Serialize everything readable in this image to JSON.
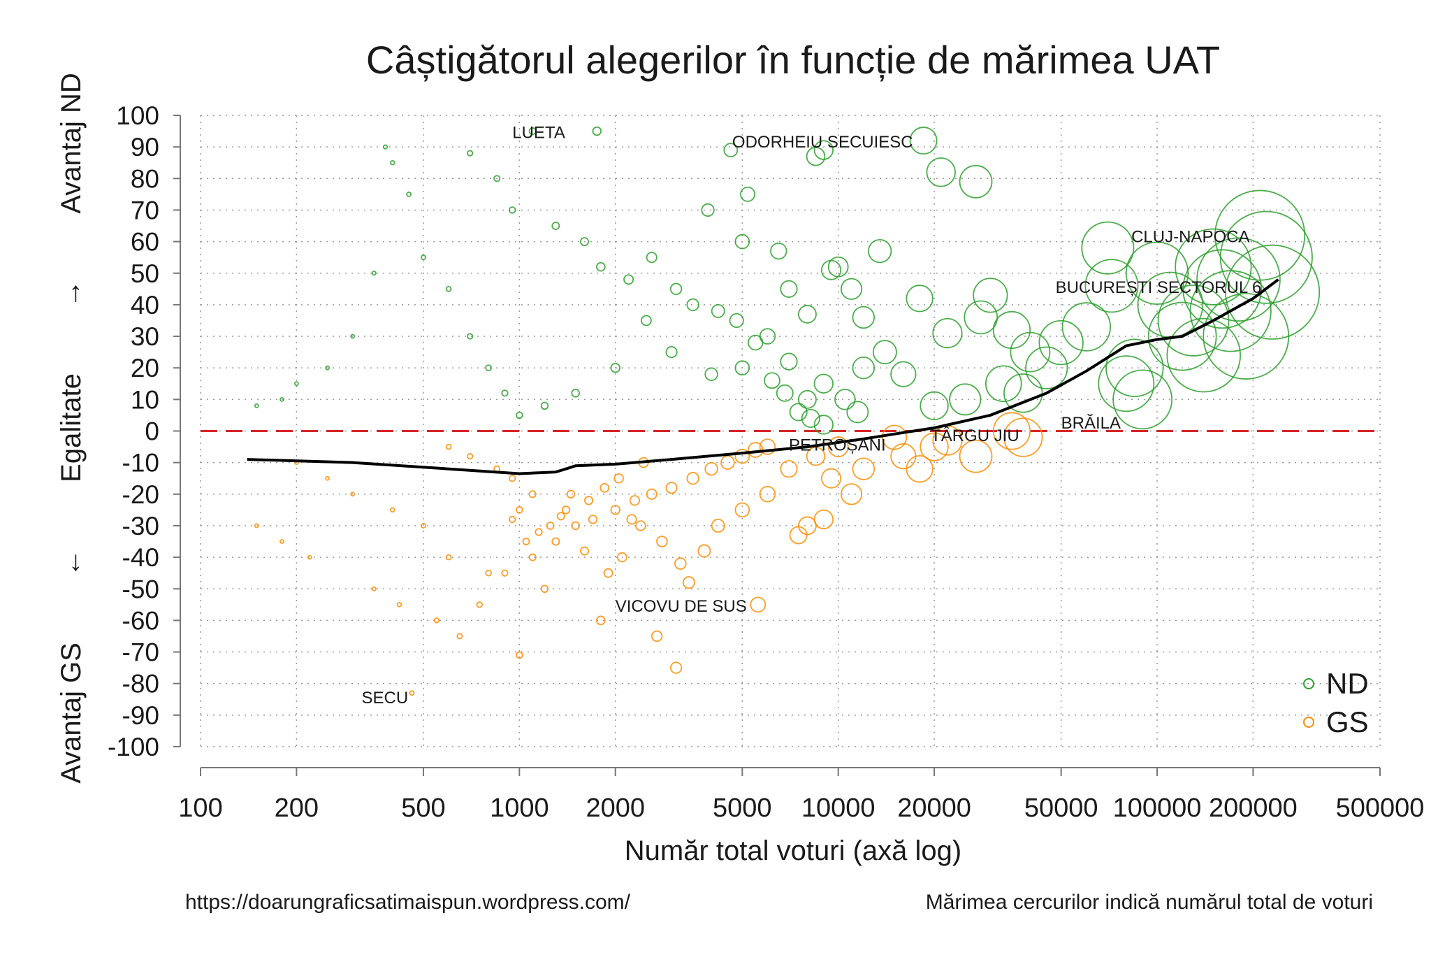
{
  "chart_data": {
    "type": "scatter",
    "title": "Câștigătorul alegerilor în funcție de mărimea UAT",
    "xlabel": "Număr total voturi (axă log)",
    "ylabel_top": "Avantaj ND",
    "ylabel_up_arrow": "→",
    "ylabel_middle": "Egalitate",
    "ylabel_down_arrow": "←",
    "ylabel_bottom": "Avantaj GS",
    "x_scale": "log",
    "xlim": [
      100,
      500000
    ],
    "ylim": [
      -100,
      100
    ],
    "x_ticks": [
      100,
      200,
      500,
      1000,
      2000,
      5000,
      10000,
      20000,
      50000,
      100000,
      200000,
      500000
    ],
    "y_ticks": [
      100,
      90,
      80,
      70,
      60,
      50,
      40,
      30,
      20,
      10,
      0,
      -10,
      -20,
      -30,
      -40,
      -50,
      -60,
      -70,
      -80,
      -90,
      -100
    ],
    "grid": true,
    "legend_position": "bottom-right",
    "reference_line": {
      "y": 0,
      "color": "#d62728",
      "style": "dashed"
    },
    "series": [
      {
        "name": "ND",
        "color": "#2ca02c",
        "points": [
          [
            1100,
            95
          ],
          [
            1750,
            95
          ],
          [
            18500,
            92
          ],
          [
            21000,
            82
          ],
          [
            27000,
            79
          ],
          [
            5200,
            75
          ],
          [
            3900,
            70
          ],
          [
            8500,
            87
          ],
          [
            9000,
            89
          ],
          [
            4600,
            89
          ],
          [
            11000,
            45
          ],
          [
            13500,
            57
          ],
          [
            10000,
            52
          ],
          [
            9500,
            51
          ],
          [
            7000,
            45
          ],
          [
            6500,
            57
          ],
          [
            5000,
            60
          ],
          [
            12000,
            36
          ],
          [
            8000,
            37
          ],
          [
            18000,
            42
          ],
          [
            30000,
            43
          ],
          [
            35000,
            32
          ],
          [
            28000,
            36
          ],
          [
            22000,
            31
          ],
          [
            40000,
            25
          ],
          [
            50000,
            28
          ],
          [
            60000,
            33
          ],
          [
            70000,
            58
          ],
          [
            72000,
            46
          ],
          [
            85000,
            20
          ],
          [
            80000,
            15
          ],
          [
            90000,
            10
          ],
          [
            100000,
            50
          ],
          [
            110000,
            40
          ],
          [
            120000,
            30
          ],
          [
            140000,
            24
          ],
          [
            150000,
            52
          ],
          [
            160000,
            45
          ],
          [
            170000,
            38
          ],
          [
            190000,
            30
          ],
          [
            210000,
            62
          ],
          [
            230000,
            44
          ],
          [
            220000,
            55
          ],
          [
            180000,
            48
          ],
          [
            130000,
            35
          ],
          [
            45000,
            20
          ],
          [
            38000,
            12
          ],
          [
            33000,
            15
          ],
          [
            25000,
            10
          ],
          [
            20000,
            8
          ],
          [
            16000,
            18
          ],
          [
            14000,
            25
          ],
          [
            12000,
            20
          ],
          [
            9000,
            15
          ],
          [
            8000,
            10
          ],
          [
            7000,
            22
          ],
          [
            6000,
            30
          ],
          [
            5000,
            20
          ],
          [
            4000,
            18
          ],
          [
            3000,
            25
          ],
          [
            2500,
            35
          ],
          [
            2000,
            20
          ],
          [
            1500,
            12
          ],
          [
            1200,
            8
          ],
          [
            1000,
            5
          ],
          [
            900,
            12
          ],
          [
            800,
            20
          ],
          [
            700,
            30
          ],
          [
            600,
            45
          ],
          [
            500,
            55
          ],
          [
            450,
            75
          ],
          [
            400,
            85
          ],
          [
            380,
            90
          ],
          [
            350,
            50
          ],
          [
            300,
            30
          ],
          [
            250,
            20
          ],
          [
            200,
            15
          ],
          [
            180,
            10
          ],
          [
            150,
            8
          ],
          [
            700,
            88
          ],
          [
            850,
            80
          ],
          [
            950,
            70
          ],
          [
            1300,
            65
          ],
          [
            1600,
            60
          ],
          [
            1800,
            52
          ],
          [
            2200,
            48
          ],
          [
            2600,
            55
          ],
          [
            3100,
            45
          ],
          [
            3500,
            40
          ],
          [
            4200,
            38
          ],
          [
            4800,
            35
          ],
          [
            5500,
            28
          ],
          [
            6200,
            16
          ],
          [
            6800,
            12
          ],
          [
            7500,
            6
          ],
          [
            8200,
            4
          ],
          [
            9000,
            2
          ],
          [
            10500,
            10
          ],
          [
            11500,
            6
          ]
        ]
      },
      {
        "name": "GS",
        "color": "#ff8c00",
        "points": [
          [
            460,
            -83
          ],
          [
            1000,
            -71
          ],
          [
            3100,
            -75
          ],
          [
            5600,
            -55
          ],
          [
            3400,
            -48
          ],
          [
            2700,
            -65
          ],
          [
            1800,
            -60
          ],
          [
            1200,
            -50
          ],
          [
            800,
            -45
          ],
          [
            600,
            -40
          ],
          [
            500,
            -30
          ],
          [
            400,
            -25
          ],
          [
            300,
            -20
          ],
          [
            250,
            -15
          ],
          [
            200,
            -10
          ],
          [
            150,
            -30
          ],
          [
            180,
            -35
          ],
          [
            220,
            -40
          ],
          [
            350,
            -50
          ],
          [
            420,
            -55
          ],
          [
            550,
            -60
          ],
          [
            650,
            -65
          ],
          [
            750,
            -55
          ],
          [
            900,
            -45
          ],
          [
            1100,
            -40
          ],
          [
            1300,
            -35
          ],
          [
            1500,
            -30
          ],
          [
            1700,
            -28
          ],
          [
            2000,
            -25
          ],
          [
            2300,
            -22
          ],
          [
            2600,
            -20
          ],
          [
            3000,
            -18
          ],
          [
            3500,
            -15
          ],
          [
            4000,
            -12
          ],
          [
            4500,
            -10
          ],
          [
            5000,
            -8
          ],
          [
            5500,
            -6
          ],
          [
            6000,
            -5
          ],
          [
            7000,
            -12
          ],
          [
            8000,
            -30
          ],
          [
            9000,
            -28
          ],
          [
            7500,
            -33
          ],
          [
            6000,
            -20
          ],
          [
            5000,
            -25
          ],
          [
            4200,
            -30
          ],
          [
            3800,
            -38
          ],
          [
            3200,
            -42
          ],
          [
            2800,
            -35
          ],
          [
            2400,
            -30
          ],
          [
            2100,
            -40
          ],
          [
            1900,
            -45
          ],
          [
            1600,
            -38
          ],
          [
            1400,
            -25
          ],
          [
            1100,
            -20
          ],
          [
            950,
            -15
          ],
          [
            850,
            -12
          ],
          [
            700,
            -8
          ],
          [
            600,
            -5
          ],
          [
            12000,
            -12
          ],
          [
            16000,
            -8
          ],
          [
            18000,
            -12
          ],
          [
            20000,
            -5
          ],
          [
            22000,
            -3
          ],
          [
            27000,
            -8
          ],
          [
            38000,
            -2
          ],
          [
            35000,
            0
          ],
          [
            15000,
            -2
          ],
          [
            10000,
            -5
          ],
          [
            9500,
            -15
          ],
          [
            8500,
            -8
          ],
          [
            11000,
            -20
          ],
          [
            1000,
            -25
          ],
          [
            1250,
            -30
          ],
          [
            1450,
            -20
          ],
          [
            1650,
            -22
          ],
          [
            1850,
            -18
          ],
          [
            2050,
            -15
          ],
          [
            2250,
            -28
          ],
          [
            2450,
            -10
          ],
          [
            1050,
            -35
          ],
          [
            1150,
            -32
          ],
          [
            1350,
            -27
          ],
          [
            950,
            -28
          ]
        ]
      }
    ],
    "trend_line": {
      "color": "#000000",
      "points": [
        [
          140,
          -9
        ],
        [
          300,
          -10
        ],
        [
          600,
          -12
        ],
        [
          1000,
          -13.5
        ],
        [
          1300,
          -13
        ],
        [
          1400,
          -12
        ],
        [
          1500,
          -11
        ],
        [
          2000,
          -10.5
        ],
        [
          3000,
          -9
        ],
        [
          5000,
          -7
        ],
        [
          8000,
          -5
        ],
        [
          12000,
          -2.5
        ],
        [
          16000,
          -0.5
        ],
        [
          20000,
          1
        ],
        [
          30000,
          5
        ],
        [
          45000,
          12
        ],
        [
          60000,
          19
        ],
        [
          80000,
          27
        ],
        [
          100000,
          29
        ],
        [
          120000,
          30
        ],
        [
          150000,
          35
        ],
        [
          200000,
          42
        ],
        [
          240000,
          48
        ]
      ]
    },
    "annotations": [
      {
        "text": "LUETA",
        "x": 1150,
        "y": 95,
        "anchor": "middle"
      },
      {
        "text": "ODORHEIU SECUIESC",
        "x": 4650,
        "y": 92,
        "anchor": "start"
      },
      {
        "text": "CLUJ-NAPOCA",
        "x": 83000,
        "y": 62,
        "anchor": "start"
      },
      {
        "text": "BUCUREȘTI SECTORUL 6",
        "x": 48000,
        "y": 46,
        "anchor": "start"
      },
      {
        "text": "BRĂILA",
        "x": 50000,
        "y": 3,
        "anchor": "start"
      },
      {
        "text": "TÂRGU JIU",
        "x": 19500,
        "y": -1,
        "anchor": "start"
      },
      {
        "text": "PETROȘANI",
        "x": 7000,
        "y": -4,
        "anchor": "start"
      },
      {
        "text": "VICOVU DE SUS",
        "x": 2000,
        "y": -55,
        "anchor": "start"
      },
      {
        "text": "SECU",
        "x": 320,
        "y": -84,
        "anchor": "start"
      }
    ]
  },
  "footer": {
    "source": "https://doarungraficsatimaispun.wordpress.com/",
    "note": "Mărimea cercurilor indică numărul total de voturi"
  }
}
